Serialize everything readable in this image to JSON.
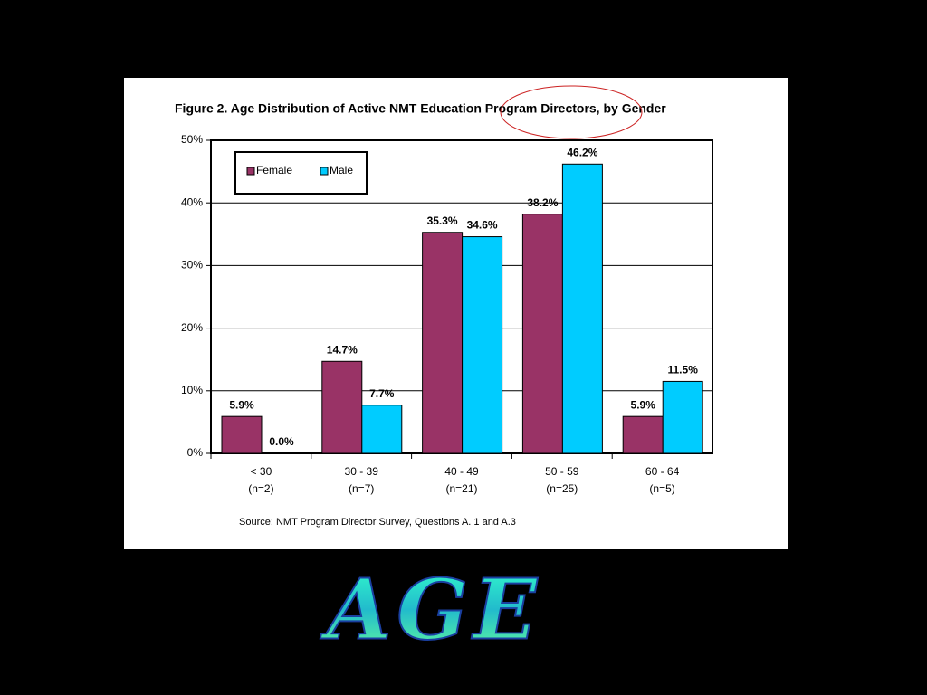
{
  "chart_data": {
    "type": "bar",
    "title": "Figure 2. Age Distribution of Active NMT Education Program Directors, by Gender",
    "categories": [
      "< 30",
      "30 - 39",
      "40 - 49",
      "50 - 59",
      "60 - 64"
    ],
    "category_counts": [
      "(n=2)",
      "(n=7)",
      "(n=21)",
      "(n=25)",
      "(n=5)"
    ],
    "series": [
      {
        "name": "Female",
        "color": "#993366",
        "values": [
          5.9,
          14.7,
          35.3,
          38.2,
          5.9
        ],
        "value_labels": [
          "5.9%",
          "14.7%",
          "35.3%",
          "38.2%",
          "5.9%"
        ]
      },
      {
        "name": "Male",
        "color": "#00ccff",
        "values": [
          0.0,
          7.7,
          34.6,
          46.2,
          11.5
        ],
        "value_labels": [
          "0.0%",
          "7.7%",
          "34.6%",
          "46.2%",
          "11.5%"
        ]
      }
    ],
    "ylim": [
      0,
      50
    ],
    "yticks": [
      {
        "value": 0,
        "label": "0%"
      },
      {
        "value": 10,
        "label": "10%"
      },
      {
        "value": 20,
        "label": "20%"
      },
      {
        "value": 30,
        "label": "30%"
      },
      {
        "value": 40,
        "label": "40%"
      },
      {
        "value": 50,
        "label": "50%"
      }
    ],
    "grid": true,
    "source": "Source: NMT Program Director Survey, Questions A. 1 and A.3",
    "slide_title": "AGE"
  }
}
